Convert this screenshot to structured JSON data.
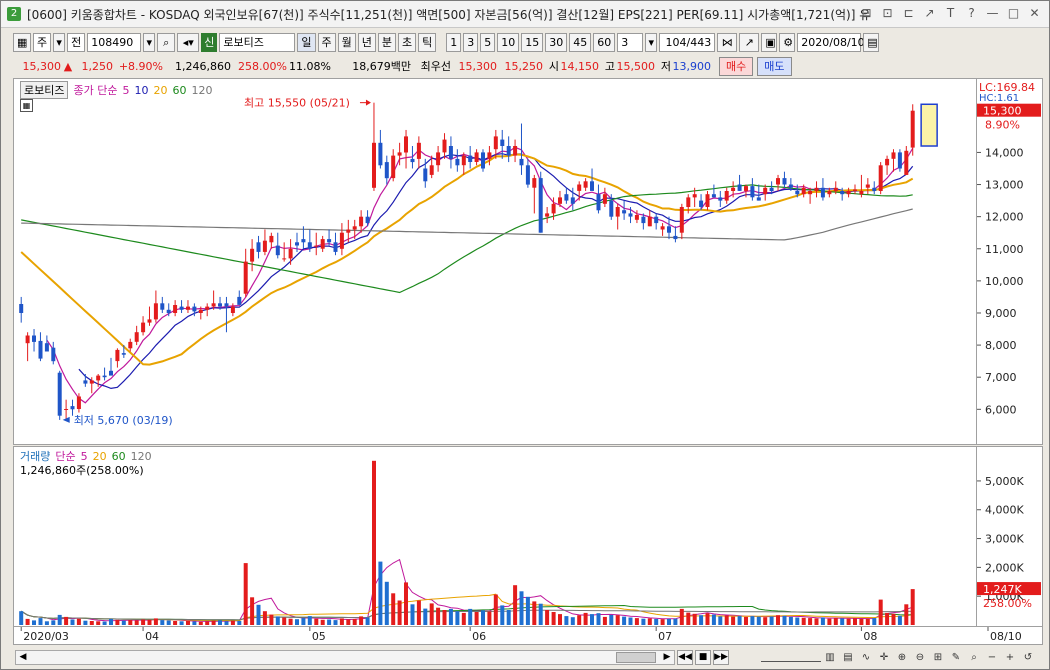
{
  "window": {
    "title": "[0600] 키움종합차트 - KOSDAQ 외국인보유[67(천)] 주식수[11,251(천)] 액면[500] 자본금[56(억)] 결산[12월] EPS[221] PER[69.11] 시가총액[1,721(억)] 유",
    "badge": "2",
    "controls": [
      "⊟",
      "⊡",
      "⊏",
      "↗",
      "T",
      "?",
      "—",
      "□",
      "✕"
    ]
  },
  "toolbar": {
    "type_label": "주",
    "prev_label": "전",
    "code": "108490",
    "stock_badge": "신",
    "stock_name": "로보티즈",
    "periods": [
      "일",
      "주",
      "월",
      "년",
      "분",
      "초",
      "틱"
    ],
    "selected_period": "일",
    "minute_options": [
      "1",
      "3",
      "5",
      "10",
      "15",
      "30",
      "45",
      "60"
    ],
    "interval_value": "3",
    "page_count": "104/443",
    "date": "2020/08/10"
  },
  "quote": {
    "price": "15,300",
    "change_arrow": "▲",
    "change": "1,250",
    "change_pct": "+8.90%",
    "volume": "1,246,860",
    "volume_ratio": "258.00%",
    "turnover": "11.08%",
    "trade_value": "18,679백만",
    "best_label": "최우선",
    "ask": "15,300",
    "bid": "15,250",
    "open_label": "시",
    "open": "14,150",
    "high_label": "고",
    "high": "15,500",
    "low_label": "저",
    "low": "13,900",
    "buy_label": "매수",
    "sell_label": "매도"
  },
  "price_legend": {
    "name": "로보티즈",
    "indicator": "종가 단순",
    "periods": [
      "5",
      "10",
      "20",
      "60",
      "120"
    ],
    "colors": [
      "#c0199c",
      "#1c1cb0",
      "#e8a300",
      "#1d8a1d",
      "#777777"
    ]
  },
  "volume_legend": {
    "name": "거래량",
    "indicator": "단순",
    "periods": [
      "5",
      "20",
      "60",
      "120"
    ],
    "colors": [
      "#c0199c",
      "#e8a300",
      "#1d8a1d",
      "#777777"
    ],
    "value_text": "1,246,860주(258.00%)"
  },
  "annotations": {
    "high_text": "최고 15,550 (05/21)",
    "low_text": "최저 5,670 (03/19)"
  },
  "axis_labels": {
    "lc": "LC:169.84",
    "hc": "HC:1.61",
    "price_tag": "15,300",
    "pct_tag": "8.90%",
    "vol_tag": "1,247K",
    "vol_pct_tag": "258.00%"
  },
  "chart_data": {
    "type": "candlestick",
    "title": "로보티즈",
    "y_ticks": [
      6000,
      7000,
      8000,
      9000,
      10000,
      11000,
      12000,
      13000,
      14000
    ],
    "y_tick_labels": [
      "6,000",
      "7,000",
      "8,000",
      "9,000",
      "10,000",
      "11,000",
      "12,000",
      "13,000",
      "14,000"
    ],
    "ylim": [
      5200,
      16100
    ],
    "vol_ticks": [
      1000,
      2000,
      3000,
      4000,
      5000
    ],
    "vol_tick_labels": [
      "1,000K",
      "2,000K",
      "3,000K",
      "4,000K",
      "5,000K"
    ],
    "vol_ylim": [
      0,
      5900
    ],
    "x_labels": [
      {
        "label": "2020/03",
        "index": 0
      },
      {
        "label": "04",
        "index": 19
      },
      {
        "label": "05",
        "index": 45
      },
      {
        "label": "06",
        "index": 70
      },
      {
        "label": "07",
        "index": 99
      },
      {
        "label": "08",
        "index": 131
      },
      {
        "label": "08/10",
        "index": 144
      }
    ],
    "candles": [
      [
        9280,
        9500,
        8700,
        9000,
        480
      ],
      [
        8060,
        8400,
        7500,
        8300,
        210
      ],
      [
        8300,
        8500,
        7800,
        8100,
        160
      ],
      [
        8130,
        8400,
        7500,
        7580,
        240
      ],
      [
        8060,
        8300,
        7800,
        7800,
        130
      ],
      [
        7920,
        8100,
        7400,
        7500,
        160
      ],
      [
        7140,
        7200,
        5670,
        5800,
        350
      ],
      [
        6000,
        6300,
        5700,
        6010,
        280
      ],
      [
        6100,
        6300,
        5800,
        6000,
        190
      ],
      [
        6010,
        6500,
        5900,
        6400,
        220
      ],
      [
        6900,
        7100,
        6700,
        6800,
        150
      ],
      [
        6800,
        7000,
        6500,
        6900,
        140
      ],
      [
        6900,
        7100,
        6700,
        7050,
        130
      ],
      [
        7050,
        7300,
        6900,
        7000,
        120
      ],
      [
        7200,
        7600,
        7100,
        7050,
        210
      ],
      [
        7500,
        7900,
        7300,
        7850,
        180
      ],
      [
        7750,
        8000,
        7600,
        7700,
        150
      ],
      [
        7900,
        8200,
        7800,
        8100,
        170
      ],
      [
        8100,
        8600,
        8000,
        8400,
        160
      ],
      [
        8400,
        8900,
        8300,
        8700,
        190
      ],
      [
        8700,
        9200,
        8600,
        8800,
        180
      ],
      [
        8800,
        9700,
        8700,
        9300,
        230
      ],
      [
        9300,
        9500,
        9000,
        9100,
        170
      ],
      [
        9100,
        9300,
        8900,
        9000,
        160
      ],
      [
        9000,
        9400,
        8900,
        9250,
        140
      ],
      [
        9200,
        9400,
        9000,
        9100,
        130
      ],
      [
        9100,
        9400,
        9000,
        9200,
        140
      ],
      [
        9200,
        9300,
        8900,
        9050,
        120
      ],
      [
        9000,
        9200,
        8800,
        9100,
        110
      ],
      [
        9100,
        9300,
        8900,
        9200,
        120
      ],
      [
        9200,
        9700,
        9100,
        9300,
        150
      ],
      [
        9300,
        9500,
        9100,
        9200,
        160
      ],
      [
        9300,
        9500,
        8400,
        9200,
        130
      ],
      [
        9000,
        9300,
        8900,
        9200,
        150
      ],
      [
        9500,
        9700,
        9300,
        9250,
        140
      ],
      [
        9600,
        11000,
        9500,
        10600,
        2150
      ],
      [
        10600,
        11300,
        10300,
        11000,
        960
      ],
      [
        11200,
        11400,
        10700,
        10900,
        700
      ],
      [
        10900,
        11600,
        10800,
        11250,
        480
      ],
      [
        11200,
        11500,
        11000,
        11400,
        360
      ],
      [
        11100,
        11500,
        10700,
        10800,
        300
      ],
      [
        10700,
        11200,
        10600,
        10700,
        260
      ],
      [
        10700,
        11300,
        10500,
        11000,
        220
      ],
      [
        11200,
        11500,
        10900,
        11100,
        200
      ],
      [
        11300,
        11700,
        11000,
        11200,
        240
      ],
      [
        11200,
        11600,
        10900,
        11000,
        310
      ],
      [
        11100,
        11500,
        10800,
        11100,
        220
      ],
      [
        11000,
        11400,
        10900,
        11300,
        180
      ],
      [
        11300,
        11600,
        11100,
        11200,
        190
      ],
      [
        11200,
        11500,
        10800,
        10900,
        170
      ],
      [
        11000,
        11800,
        10800,
        11500,
        230
      ],
      [
        11500,
        11900,
        11200,
        11600,
        190
      ],
      [
        11600,
        11900,
        11300,
        11700,
        210
      ],
      [
        11700,
        12200,
        11500,
        12000,
        300
      ],
      [
        12000,
        12200,
        11700,
        11800,
        260
      ],
      [
        12900,
        15550,
        12800,
        14300,
        5700
      ],
      [
        14300,
        14700,
        13500,
        13600,
        2200
      ],
      [
        13700,
        13900,
        13000,
        13200,
        1500
      ],
      [
        13200,
        14100,
        13100,
        13900,
        1100
      ],
      [
        13900,
        14300,
        13600,
        14000,
        850
      ],
      [
        14000,
        14700,
        13500,
        14500,
        1480
      ],
      [
        13800,
        14200,
        13500,
        13700,
        720
      ],
      [
        13800,
        14500,
        13500,
        14300,
        850
      ],
      [
        13500,
        13800,
        12900,
        13100,
        570
      ],
      [
        13300,
        13900,
        13200,
        13600,
        750
      ],
      [
        13600,
        14200,
        13400,
        14000,
        600
      ],
      [
        14000,
        14600,
        13800,
        14400,
        520
      ],
      [
        14200,
        14500,
        13500,
        13800,
        560
      ],
      [
        13800,
        14100,
        13400,
        13600,
        480
      ],
      [
        13600,
        14000,
        13300,
        13900,
        420
      ],
      [
        13900,
        14200,
        13500,
        13700,
        560
      ],
      [
        13700,
        14100,
        13600,
        14000,
        450
      ],
      [
        14000,
        14100,
        13400,
        13500,
        510
      ],
      [
        13800,
        14200,
        13600,
        14000,
        470
      ],
      [
        14100,
        14700,
        13800,
        14500,
        1060
      ],
      [
        14400,
        14700,
        13800,
        14200,
        680
      ],
      [
        14200,
        14500,
        13700,
        13900,
        520
      ],
      [
        13900,
        14400,
        13700,
        14200,
        1380
      ],
      [
        13800,
        14900,
        13300,
        13600,
        1170
      ],
      [
        13600,
        13800,
        12900,
        13000,
        980
      ],
      [
        12900,
        13300,
        12100,
        13200,
        820
      ],
      [
        13200,
        13400,
        11500,
        11500,
        740
      ],
      [
        12000,
        12300,
        11800,
        12100,
        520
      ],
      [
        12100,
        12600,
        11900,
        12400,
        450
      ],
      [
        12400,
        12800,
        12300,
        12600,
        380
      ],
      [
        12700,
        12900,
        12400,
        12500,
        310
      ],
      [
        12600,
        12900,
        12200,
        12400,
        270
      ],
      [
        12800,
        13100,
        12500,
        13000,
        340
      ],
      [
        12900,
        13200,
        12800,
        13100,
        420
      ],
      [
        13100,
        13500,
        12800,
        12800,
        380
      ],
      [
        12700,
        13000,
        12100,
        12200,
        410
      ],
      [
        12400,
        12900,
        12300,
        12700,
        280
      ],
      [
        12500,
        12700,
        11900,
        12000,
        350
      ],
      [
        12000,
        12400,
        11600,
        12300,
        340
      ],
      [
        12200,
        12500,
        11900,
        12100,
        290
      ],
      [
        12100,
        12300,
        11800,
        12000,
        260
      ],
      [
        11900,
        12200,
        11800,
        12050,
        240
      ],
      [
        12000,
        12100,
        11600,
        11800,
        220
      ],
      [
        11700,
        12200,
        11700,
        12000,
        230
      ],
      [
        12000,
        12100,
        11600,
        11800,
        210
      ],
      [
        11600,
        11800,
        11400,
        11700,
        200
      ],
      [
        11700,
        12000,
        11300,
        11500,
        210
      ],
      [
        11400,
        11700,
        11200,
        11300,
        220
      ],
      [
        11500,
        12400,
        11300,
        12300,
        560
      ],
      [
        12300,
        12700,
        12100,
        12600,
        430
      ],
      [
        12600,
        12900,
        12300,
        12700,
        390
      ],
      [
        12500,
        12700,
        12200,
        12300,
        340
      ],
      [
        12300,
        12800,
        12200,
        12700,
        410
      ],
      [
        12700,
        13000,
        12600,
        12600,
        360
      ],
      [
        12600,
        12800,
        12300,
        12500,
        300
      ],
      [
        12500,
        12900,
        12400,
        12800,
        330
      ],
      [
        12800,
        13100,
        12600,
        12900,
        290
      ],
      [
        13000,
        13300,
        12800,
        12800,
        310
      ],
      [
        12800,
        13000,
        12600,
        12950,
        280
      ],
      [
        12950,
        13200,
        12500,
        12600,
        310
      ],
      [
        12600,
        13000,
        12500,
        12500,
        290
      ],
      [
        12700,
        13000,
        12500,
        12900,
        270
      ],
      [
        12900,
        13100,
        12700,
        12800,
        300
      ],
      [
        13000,
        13300,
        12800,
        13200,
        340
      ],
      [
        13200,
        13400,
        12900,
        13000,
        320
      ],
      [
        13000,
        13200,
        12800,
        12900,
        280
      ],
      [
        12800,
        13000,
        12600,
        12700,
        260
      ],
      [
        12700,
        13000,
        12600,
        12900,
        250
      ],
      [
        12700,
        12900,
        12400,
        12800,
        240
      ],
      [
        12800,
        13100,
        12600,
        12900,
        230
      ],
      [
        12900,
        13200,
        12500,
        12600,
        260
      ],
      [
        12700,
        12900,
        12600,
        12800,
        220
      ],
      [
        12800,
        13100,
        12700,
        12900,
        240
      ],
      [
        12800,
        12900,
        12500,
        12700,
        230
      ],
      [
        12700,
        12900,
        12600,
        12800,
        220
      ],
      [
        12800,
        13000,
        12700,
        12850,
        230
      ],
      [
        12700,
        13300,
        12600,
        12800,
        210
      ],
      [
        12900,
        13200,
        12700,
        13000,
        220
      ],
      [
        12900,
        13100,
        12700,
        12800,
        240
      ],
      [
        12800,
        13700,
        12700,
        13600,
        880
      ],
      [
        13600,
        13900,
        13300,
        13800,
        420
      ],
      [
        13800,
        14100,
        13400,
        14000,
        390
      ],
      [
        14000,
        14100,
        13400,
        13500,
        320
      ],
      [
        13300,
        14200,
        13300,
        14050,
        720
      ],
      [
        14150,
        15500,
        13900,
        15300,
        1247
      ]
    ]
  }
}
